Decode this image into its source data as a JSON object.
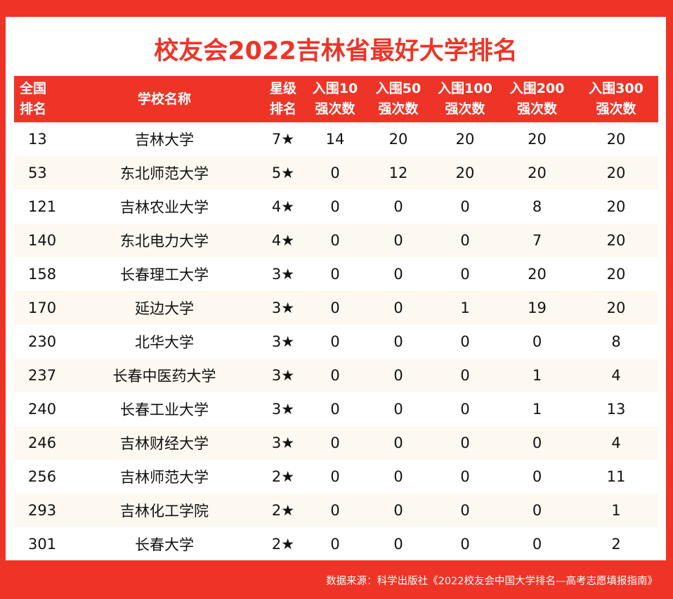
{
  "title": "校友会2022吉林省最好大学排名",
  "colors": {
    "accent": "#ee3427",
    "row_alt": "#fdf8f0"
  },
  "table": {
    "headers": [
      [
        "全国",
        "排名"
      ],
      [
        "学校名称"
      ],
      [
        "星级",
        "排名"
      ],
      [
        "入围10",
        "强次数"
      ],
      [
        "入围50",
        "强次数"
      ],
      [
        "入围100",
        "强次数"
      ],
      [
        "入围200",
        "强次数"
      ],
      [
        "入围300",
        "强次数"
      ]
    ],
    "rows": [
      [
        "13",
        "吉林大学",
        "7★",
        "14",
        "20",
        "20",
        "20",
        "20"
      ],
      [
        "53",
        "东北师范大学",
        "5★",
        "0",
        "12",
        "20",
        "20",
        "20"
      ],
      [
        "121",
        "吉林农业大学",
        "4★",
        "0",
        "0",
        "0",
        "8",
        "20"
      ],
      [
        "140",
        "东北电力大学",
        "4★",
        "0",
        "0",
        "0",
        "7",
        "20"
      ],
      [
        "158",
        "长春理工大学",
        "3★",
        "0",
        "0",
        "0",
        "20",
        "20"
      ],
      [
        "170",
        "延边大学",
        "3★",
        "0",
        "0",
        "1",
        "19",
        "20"
      ],
      [
        "230",
        "北华大学",
        "3★",
        "0",
        "0",
        "0",
        "0",
        "8"
      ],
      [
        "237",
        "长春中医药大学",
        "3★",
        "0",
        "0",
        "0",
        "1",
        "4"
      ],
      [
        "240",
        "长春工业大学",
        "3★",
        "0",
        "0",
        "0",
        "1",
        "13"
      ],
      [
        "246",
        "吉林财经大学",
        "3★",
        "0",
        "0",
        "0",
        "0",
        "4"
      ],
      [
        "256",
        "吉林师范大学",
        "2★",
        "0",
        "0",
        "0",
        "0",
        "11"
      ],
      [
        "293",
        "吉林化工学院",
        "2★",
        "0",
        "0",
        "0",
        "0",
        "1"
      ],
      [
        "301",
        "长春大学",
        "2★",
        "0",
        "0",
        "0",
        "0",
        "2"
      ]
    ]
  },
  "footer": "数据来源：科学出版社《2022校友会中国大学排名—高考志愿填报指南》"
}
